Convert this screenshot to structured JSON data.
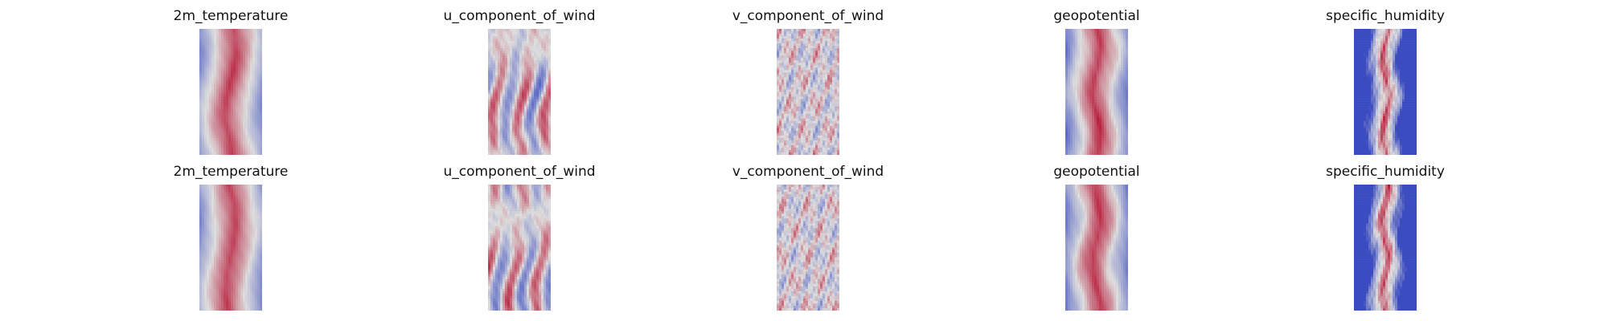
{
  "chart_data": {
    "type": "heatmap",
    "colormap": "coolwarm",
    "colormap_colors": [
      "#3b4cc0",
      "#dddddd",
      "#b40426"
    ],
    "axes_visible": false,
    "rows": [
      {
        "panels": [
          {
            "title": "2m_temperature",
            "pattern": "temperature"
          },
          {
            "title": "u_component_of_wind",
            "pattern": "u_wind"
          },
          {
            "title": "v_component_of_wind",
            "pattern": "v_wind"
          },
          {
            "title": "geopotential",
            "pattern": "geopotential"
          },
          {
            "title": "specific_humidity",
            "pattern": "humidity"
          }
        ]
      },
      {
        "panels": [
          {
            "title": "2m_temperature",
            "pattern": "temperature"
          },
          {
            "title": "u_component_of_wind",
            "pattern": "u_wind"
          },
          {
            "title": "v_component_of_wind",
            "pattern": "v_wind"
          },
          {
            "title": "geopotential",
            "pattern": "geopotential"
          },
          {
            "title": "specific_humidity",
            "pattern": "humidity"
          }
        ]
      }
    ]
  }
}
